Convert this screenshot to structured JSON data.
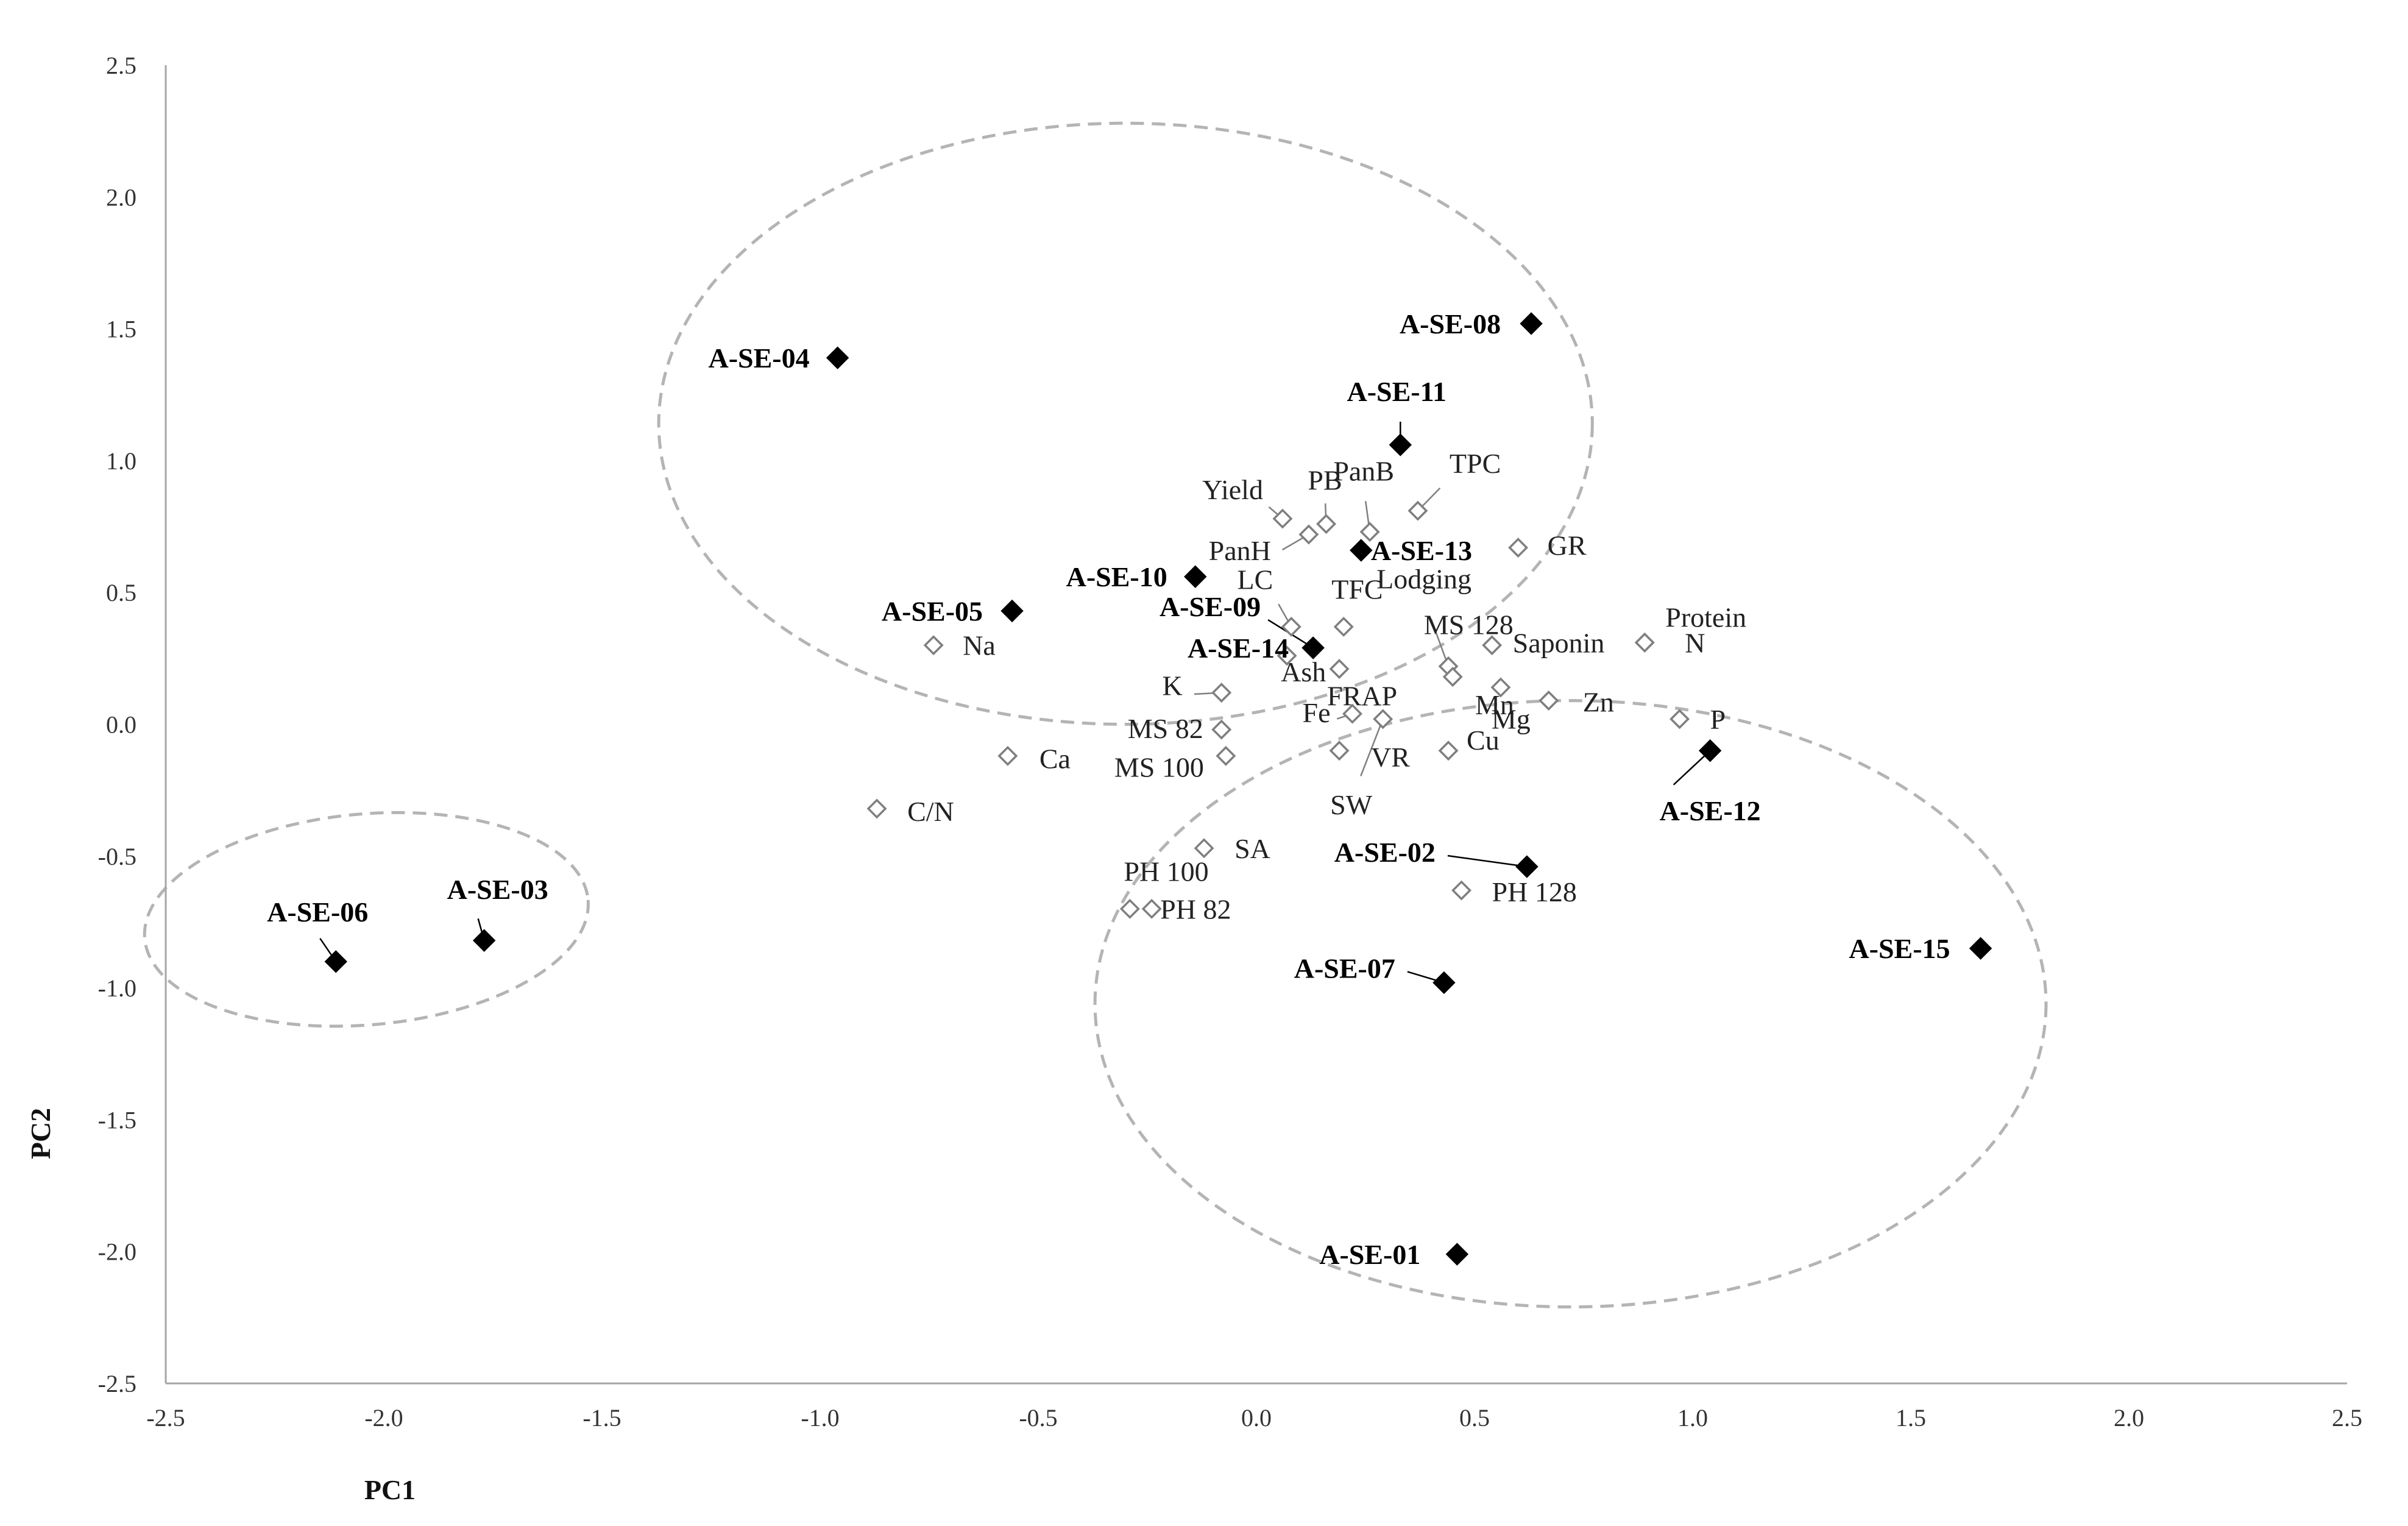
{
  "chart_data": {
    "type": "scatter",
    "title": "",
    "xlabel": "PC1",
    "ylabel": "PC2",
    "xlim": [
      -2.5,
      2.5
    ],
    "ylim": [
      -2.5,
      2.5
    ],
    "x_ticks": [
      "-2.5",
      "-2.0",
      "-1.5",
      "-1.0",
      "-0.5",
      "0.0",
      "0.5",
      "1.0",
      "1.5",
      "2.0",
      "2.5"
    ],
    "y_ticks": [
      "2.5",
      "2.0",
      "1.5",
      "1.0",
      "0.5",
      "0.0",
      "-0.5",
      "-1.0",
      "-1.5",
      "-2.0",
      "-2.5"
    ],
    "grid": false,
    "legend": "none",
    "colors": {
      "observations": "#000000",
      "variables": "#7f7f7f",
      "clusters": "#b4b4b4"
    },
    "observations": [
      {
        "label": "A-SE-01",
        "x": 0.46,
        "y": -2.01
      },
      {
        "label": "A-SE-02",
        "x": 0.62,
        "y": -0.54
      },
      {
        "label": "A-SE-03",
        "x": -1.77,
        "y": -0.82
      },
      {
        "label": "A-SE-04",
        "x": -0.96,
        "y": 1.39
      },
      {
        "label": "A-SE-05",
        "x": -0.56,
        "y": 0.43
      },
      {
        "label": "A-SE-06",
        "x": -2.11,
        "y": -0.9
      },
      {
        "label": "A-SE-07",
        "x": 0.43,
        "y": -0.98
      },
      {
        "label": "A-SE-08",
        "x": 0.63,
        "y": 1.52
      },
      {
        "label": "A-SE-09",
        "x": 0.13,
        "y": 0.29
      },
      {
        "label": "A-SE-10",
        "x": -0.14,
        "y": 0.56
      },
      {
        "label": "A-SE-11",
        "x": 0.33,
        "y": 1.06
      },
      {
        "label": "A-SE-12",
        "x": 1.04,
        "y": -0.1
      },
      {
        "label": "A-SE-13",
        "x": 0.24,
        "y": 0.66
      },
      {
        "label": "A-SE-14",
        "x": 0.13,
        "y": 0.29
      },
      {
        "label": "A-SE-15",
        "x": 1.66,
        "y": -0.85
      }
    ],
    "variables": [
      {
        "label": "Yield",
        "x": 0.06,
        "y": 0.78
      },
      {
        "label": "PB",
        "x": 0.16,
        "y": 0.76
      },
      {
        "label": "PanB",
        "x": 0.26,
        "y": 0.73
      },
      {
        "label": "TPC",
        "x": 0.37,
        "y": 0.81
      },
      {
        "label": "PanH",
        "x": 0.12,
        "y": 0.72
      },
      {
        "label": "GR",
        "x": 0.6,
        "y": 0.67
      },
      {
        "label": "LC",
        "x": 0.08,
        "y": 0.37
      },
      {
        "label": "TFC",
        "x": 0.2,
        "y": 0.37
      },
      {
        "label": "Lodging",
        "x": 0.44,
        "y": 0.22
      },
      {
        "label": "MS 128",
        "x": 0.45,
        "y": 0.18
      },
      {
        "label": "Saponin",
        "x": 0.54,
        "y": 0.3
      },
      {
        "label": "Protein",
        "x": 0.89,
        "y": 0.31
      },
      {
        "label": "N",
        "x": 0.89,
        "y": 0.31
      },
      {
        "label": "Na",
        "x": -0.74,
        "y": 0.3
      },
      {
        "label": "K",
        "x": -0.08,
        "y": 0.12
      },
      {
        "label": "Ash",
        "x": 0.07,
        "y": 0.26
      },
      {
        "label": "FRAP",
        "x": 0.19,
        "y": 0.21
      },
      {
        "label": "Mn",
        "x": 0.56,
        "y": 0.14
      },
      {
        "label": "Mg",
        "x": 0.67,
        "y": 0.09
      },
      {
        "label": "Zn",
        "x": 0.67,
        "y": 0.09
      },
      {
        "label": "P",
        "x": 0.97,
        "y": 0.02
      },
      {
        "label": "MS 82",
        "x": -0.08,
        "y": -0.02
      },
      {
        "label": "Fe",
        "x": 0.22,
        "y": 0.04
      },
      {
        "label": "MS 100",
        "x": -0.07,
        "y": -0.12
      },
      {
        "label": "VR",
        "x": 0.19,
        "y": -0.1
      },
      {
        "label": "Cu",
        "x": 0.44,
        "y": -0.1
      },
      {
        "label": "Ca",
        "x": -0.57,
        "y": -0.12
      },
      {
        "label": "SW",
        "x": 0.29,
        "y": 0.02
      },
      {
        "label": "C/N",
        "x": -0.87,
        "y": -0.32
      },
      {
        "label": "SA",
        "x": -0.12,
        "y": -0.47
      },
      {
        "label": "PH 100",
        "x": -0.29,
        "y": -0.7
      },
      {
        "label": "PH 82",
        "x": -0.24,
        "y": -0.7
      },
      {
        "label": "PH 128",
        "x": 0.47,
        "y": -0.63
      }
    ],
    "clusters": [
      {
        "cx": -0.3,
        "cy": 1.14,
        "rx": 1.07,
        "ry": 1.14,
        "rotate": 0
      },
      {
        "cx": 0.72,
        "cy": -1.06,
        "rx": 1.09,
        "ry": 1.15,
        "rotate": 0
      },
      {
        "cx": -2.04,
        "cy": -0.74,
        "rx": 0.51,
        "ry": 0.4,
        "rotate": -5
      }
    ]
  }
}
